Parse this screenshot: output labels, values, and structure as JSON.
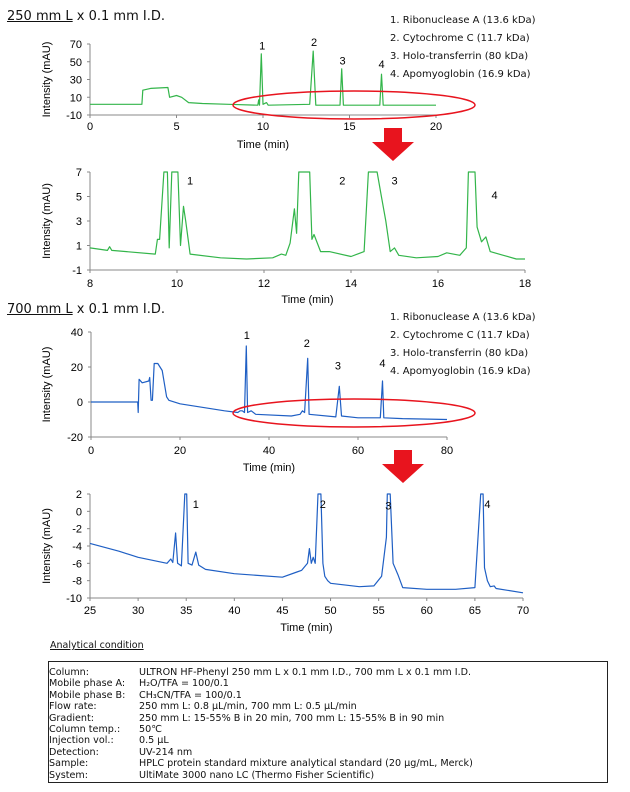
{
  "colors": {
    "green": "#33b54a",
    "blue": "#1f5fc4",
    "highlight": "#e8141e"
  },
  "legend": [
    "1. Ribonuclease A (13.6 kDa)",
    "2. Cytochrome C (11.7 kDa)",
    "3. Holo-transferrin (80 kDa)",
    "4. Apomyoglobin (16.9 kDa)"
  ],
  "titles": [
    {
      "underlined": "250 mm L",
      "rest": " x 0.1 mm I.D."
    },
    {
      "underlined": "700 mm L",
      "rest": " x 0.1 mm I.D."
    }
  ],
  "chart_data": [
    {
      "type": "line",
      "xlabel": "Time (min)",
      "ylabel": "Intensity (mAU)",
      "xlim": [
        0,
        20
      ],
      "ylim": [
        -10,
        70
      ],
      "xticks": [
        0,
        5,
        10,
        15,
        20
      ],
      "yticks": [
        -10,
        10,
        30,
        50,
        70
      ],
      "peak_labels": [
        "1",
        "2",
        "3",
        "4"
      ],
      "points": [
        [
          0,
          2
        ],
        [
          3,
          2
        ],
        [
          3.05,
          18
        ],
        [
          3.5,
          20
        ],
        [
          4.5,
          21
        ],
        [
          4.6,
          10
        ],
        [
          5,
          12
        ],
        [
          5.3,
          10
        ],
        [
          5.7,
          4
        ],
        [
          6.5,
          3
        ],
        [
          8,
          2
        ],
        [
          9.7,
          1
        ],
        [
          9.75,
          7
        ],
        [
          9.8,
          1
        ],
        [
          9.9,
          59
        ],
        [
          10,
          2
        ],
        [
          10.2,
          4
        ],
        [
          10.3,
          1
        ],
        [
          12.7,
          2
        ],
        [
          12.9,
          62
        ],
        [
          13.05,
          1
        ],
        [
          14.45,
          1
        ],
        [
          14.55,
          42
        ],
        [
          14.65,
          1
        ],
        [
          16.75,
          1
        ],
        [
          16.85,
          36
        ],
        [
          16.95,
          1
        ],
        [
          20,
          1
        ]
      ]
    },
    {
      "type": "line",
      "xlabel": "Time (min)",
      "ylabel": "Intensity (mAU)",
      "xlim": [
        8,
        18
      ],
      "ylim": [
        -1,
        7
      ],
      "xticks": [
        8,
        10,
        12,
        14,
        16,
        18
      ],
      "yticks": [
        -1,
        1,
        3,
        5,
        7
      ],
      "peak_labels": [
        "1",
        "2",
        "3",
        "4"
      ],
      "points": [
        [
          8,
          0.8
        ],
        [
          8.4,
          0.6
        ],
        [
          8.45,
          0.9
        ],
        [
          8.5,
          0.6
        ],
        [
          9.5,
          0.3
        ],
        [
          9.55,
          1.5
        ],
        [
          9.6,
          1.5
        ],
        [
          9.7,
          8
        ],
        [
          9.78,
          8
        ],
        [
          9.82,
          0.8
        ],
        [
          9.88,
          8
        ],
        [
          10.02,
          8
        ],
        [
          10.08,
          1
        ],
        [
          10.15,
          4.2
        ],
        [
          10.2,
          3
        ],
        [
          10.3,
          0.3
        ],
        [
          11,
          0
        ],
        [
          11.6,
          -0.1
        ],
        [
          12.2,
          0
        ],
        [
          12.4,
          0.3
        ],
        [
          12.5,
          0.2
        ],
        [
          12.6,
          1.2
        ],
        [
          12.7,
          4
        ],
        [
          12.75,
          2
        ],
        [
          12.8,
          8
        ],
        [
          13.05,
          8
        ],
        [
          13.1,
          1.5
        ],
        [
          13.15,
          1.9
        ],
        [
          13.3,
          0.5
        ],
        [
          13.5,
          0.5
        ],
        [
          14,
          0.1
        ],
        [
          14.3,
          0.5
        ],
        [
          14.4,
          8
        ],
        [
          14.6,
          8
        ],
        [
          14.7,
          5
        ],
        [
          14.8,
          3
        ],
        [
          14.9,
          0.5
        ],
        [
          15,
          0.8
        ],
        [
          15.1,
          0.2
        ],
        [
          15.5,
          0
        ],
        [
          16,
          0.1
        ],
        [
          16.2,
          0.4
        ],
        [
          16.5,
          0.2
        ],
        [
          16.65,
          0.8
        ],
        [
          16.7,
          8
        ],
        [
          16.85,
          8
        ],
        [
          16.9,
          2.5
        ],
        [
          17,
          1.3
        ],
        [
          17.1,
          1.7
        ],
        [
          17.2,
          0.5
        ],
        [
          17.5,
          0.2
        ],
        [
          17.8,
          -0.1
        ],
        [
          18,
          -0.1
        ]
      ]
    },
    {
      "type": "line",
      "xlabel": "Time (min)",
      "ylabel": "Intensity (mAU)",
      "xlim": [
        0,
        80
      ],
      "ylim": [
        -20,
        40
      ],
      "xticks": [
        0,
        20,
        40,
        60,
        80
      ],
      "yticks": [
        -20,
        0,
        20,
        40
      ],
      "peak_labels": [
        "1",
        "2",
        "3",
        "4"
      ],
      "points": [
        [
          0,
          0
        ],
        [
          10.5,
          0
        ],
        [
          10.6,
          -6
        ],
        [
          10.8,
          13
        ],
        [
          11.5,
          11
        ],
        [
          13,
          12
        ],
        [
          13.2,
          14
        ],
        [
          13.5,
          1
        ],
        [
          13.8,
          1
        ],
        [
          14.2,
          22
        ],
        [
          15,
          22
        ],
        [
          15.5,
          20
        ],
        [
          16,
          18
        ],
        [
          17,
          3
        ],
        [
          17.5,
          1
        ],
        [
          20,
          -1
        ],
        [
          30,
          -5
        ],
        [
          33,
          -6
        ],
        [
          33.5,
          -5
        ],
        [
          34,
          -5
        ],
        [
          34.5,
          -6
        ],
        [
          34.9,
          32
        ],
        [
          35.2,
          -6
        ],
        [
          36,
          -5
        ],
        [
          37,
          -7
        ],
        [
          45,
          -8
        ],
        [
          47,
          -7
        ],
        [
          47.5,
          -5
        ],
        [
          48,
          -6
        ],
        [
          48.7,
          25
        ],
        [
          49,
          -7
        ],
        [
          55,
          -8.5
        ],
        [
          55.8,
          9
        ],
        [
          56.3,
          -8
        ],
        [
          60,
          -9
        ],
        [
          65,
          -9
        ],
        [
          65.5,
          12
        ],
        [
          65.8,
          -9
        ],
        [
          70,
          -9.5
        ],
        [
          80,
          -10
        ]
      ]
    },
    {
      "type": "line",
      "xlabel": "Time (min)",
      "ylabel": "Intensity (mAU)",
      "xlim": [
        25,
        70
      ],
      "ylim": [
        -10,
        2
      ],
      "xticks": [
        25,
        30,
        35,
        40,
        45,
        50,
        55,
        60,
        65,
        70
      ],
      "yticks": [
        -10,
        -8,
        -6,
        -4,
        -2,
        0,
        2
      ],
      "peak_labels": [
        "1",
        "2",
        "3",
        "4"
      ],
      "points": [
        [
          25,
          -3.7
        ],
        [
          28,
          -4.6
        ],
        [
          30,
          -5.3
        ],
        [
          33,
          -6
        ],
        [
          33.4,
          -5.5
        ],
        [
          33.6,
          -5.9
        ],
        [
          33.9,
          -2.5
        ],
        [
          34.1,
          -6
        ],
        [
          34.5,
          -6.3
        ],
        [
          34.85,
          3
        ],
        [
          35.05,
          3
        ],
        [
          35.2,
          -6
        ],
        [
          35.6,
          -6.2
        ],
        [
          36,
          -4.7
        ],
        [
          36.3,
          -6.2
        ],
        [
          37,
          -6.7
        ],
        [
          40,
          -7.2
        ],
        [
          45,
          -7.6
        ],
        [
          46.5,
          -7
        ],
        [
          47,
          -6.8
        ],
        [
          47.6,
          -6
        ],
        [
          47.8,
          -4.3
        ],
        [
          48,
          -6
        ],
        [
          48.2,
          -5.3
        ],
        [
          48.4,
          -6
        ],
        [
          48.7,
          3
        ],
        [
          49,
          3
        ],
        [
          49.2,
          -6
        ],
        [
          49.4,
          -7.5
        ],
        [
          49.7,
          -8
        ],
        [
          50,
          -8.3
        ],
        [
          53,
          -8.7
        ],
        [
          54.5,
          -8.6
        ],
        [
          55.3,
          -7.5
        ],
        [
          55.8,
          -3
        ],
        [
          55.9,
          3
        ],
        [
          56.2,
          3
        ],
        [
          56.5,
          -6
        ],
        [
          57,
          -7.3
        ],
        [
          57.5,
          -8.8
        ],
        [
          60,
          -9
        ],
        [
          63,
          -9
        ],
        [
          65,
          -8.8
        ],
        [
          65.6,
          3
        ],
        [
          65.85,
          3
        ],
        [
          66,
          -6.5
        ],
        [
          66.3,
          -8
        ],
        [
          66.6,
          -8.7
        ],
        [
          67,
          -8.6
        ],
        [
          67.2,
          -8.9
        ],
        [
          70,
          -9.4
        ]
      ]
    }
  ],
  "conditions": {
    "heading": "Analytical condition",
    "rows": [
      {
        "key": "Column:",
        "value": "ULTRON HF-Phenyl  250 mm L x 0.1 mm I.D., 700 mm L x 0.1 mm I.D."
      },
      {
        "key": "Mobile phase A:",
        "value": "H₂O/TFA = 100/0.1"
      },
      {
        "key": "Mobile phase B:",
        "value": "CH₃CN/TFA = 100/0.1"
      },
      {
        "key": "Flow rate:",
        "value": "250 mm L: 0.8 µL/min, 700 mm L: 0.5 µL/min"
      },
      {
        "key": "Gradient:",
        "value": "250 mm L: 15-55% B in 20 min, 700 mm L: 15-55% B in 90 min"
      },
      {
        "key": "Column temp.:",
        "value": "50℃"
      },
      {
        "key": "Injection vol.:",
        "value": "0.5 µL"
      },
      {
        "key": "Detection:",
        "value": "UV-214 nm"
      },
      {
        "key": "Sample:",
        "value": "HPLC protein standard mixture  analytical standard (20 µg/mL, Merck)"
      },
      {
        "key": "System:",
        "value": "UltiMate 3000 nano LC (Thermo Fisher Scientific)"
      }
    ]
  }
}
